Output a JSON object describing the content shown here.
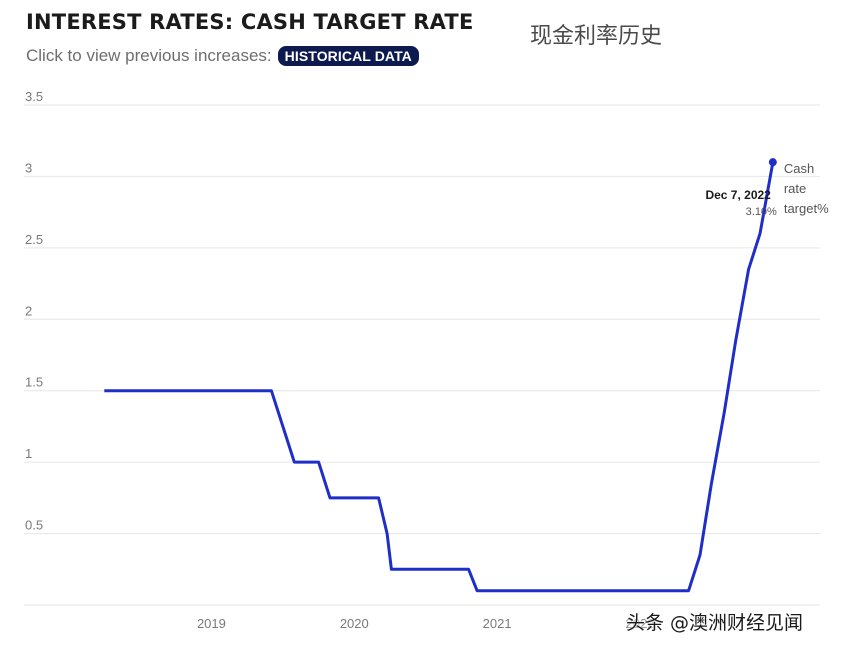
{
  "header": {
    "title": "INTEREST RATES: CASH TARGET RATE",
    "title_cn": "现金利率历史",
    "subtitle": "Click to view previous increases:",
    "button_label": "HISTORICAL DATA"
  },
  "watermark": "头条 @澳洲财经见闻",
  "colors": {
    "line": "#1f2ec8",
    "button_bg": "#0d1a4f",
    "grid": "#e6e6e6"
  },
  "chart_data": {
    "type": "line",
    "title": "INTEREST RATES: CASH TARGET RATE",
    "xlabel": "",
    "ylabel": "",
    "ylim": [
      0,
      3.5
    ],
    "xlim": [
      2018.15,
      2022.98
    ],
    "grid": true,
    "legend": "none",
    "y_ticks": [
      "3.5",
      "3",
      "2.5",
      "2",
      "1.5",
      "1",
      "0.5"
    ],
    "y_tick_values": [
      3.5,
      3,
      2.5,
      2,
      1.5,
      1,
      0.5
    ],
    "x_ticks": [
      "2019",
      "2020",
      "2021",
      "2022"
    ],
    "x_tick_values": [
      2019,
      2020,
      2021,
      2022
    ],
    "series": [
      {
        "name": "Cash rate target%",
        "points": [
          [
            2018.25,
            1.5
          ],
          [
            2019.42,
            1.5
          ],
          [
            2019.58,
            1.0
          ],
          [
            2019.75,
            1.0
          ],
          [
            2019.83,
            0.75
          ],
          [
            2020.17,
            0.75
          ],
          [
            2020.23,
            0.5
          ],
          [
            2020.26,
            0.25
          ],
          [
            2020.8,
            0.25
          ],
          [
            2020.86,
            0.1
          ],
          [
            2022.34,
            0.1
          ],
          [
            2022.42,
            0.35
          ],
          [
            2022.5,
            0.85
          ],
          [
            2022.59,
            1.35
          ],
          [
            2022.67,
            1.85
          ],
          [
            2022.76,
            2.35
          ],
          [
            2022.84,
            2.6
          ],
          [
            2022.93,
            3.1
          ]
        ]
      }
    ],
    "annotation": {
      "date": "Dec 7, 2022",
      "value": "3.10%"
    }
  }
}
